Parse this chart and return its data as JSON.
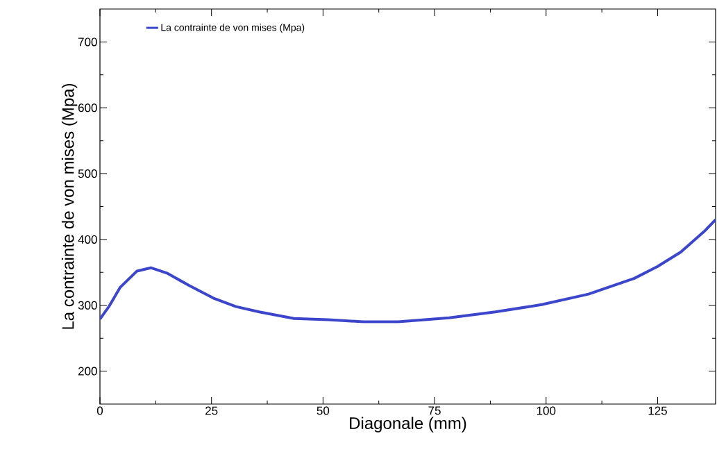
{
  "chart_data": {
    "type": "line",
    "xlabel": "Diagonale (mm)",
    "ylabel": "La contrainte de von mises (Mpa)",
    "x": [
      0,
      2,
      4.5,
      8.3,
      11.4,
      15,
      20,
      25.4,
      30.5,
      35.7,
      43.5,
      51.2,
      59,
      66.8,
      78.3,
      88.6,
      99,
      109.5,
      119.8,
      125,
      130.2,
      135.4,
      138
    ],
    "series": [
      {
        "name": "La contrainte de von mises (Mpa)",
        "color": "#3c46cc",
        "values": [
          279,
          298,
          327,
          352,
          357,
          349,
          330,
          311,
          298,
          290,
          280,
          278,
          275,
          275,
          281,
          290,
          301,
          317,
          341,
          359,
          381,
          412,
          430
        ]
      }
    ],
    "xlim": [
      0,
      138
    ],
    "ylim": [
      150,
      750
    ],
    "xticks": [
      0,
      25,
      50,
      75,
      100,
      125
    ],
    "yticks": [
      200,
      300,
      400,
      500,
      600,
      700
    ],
    "legend": "top left"
  }
}
